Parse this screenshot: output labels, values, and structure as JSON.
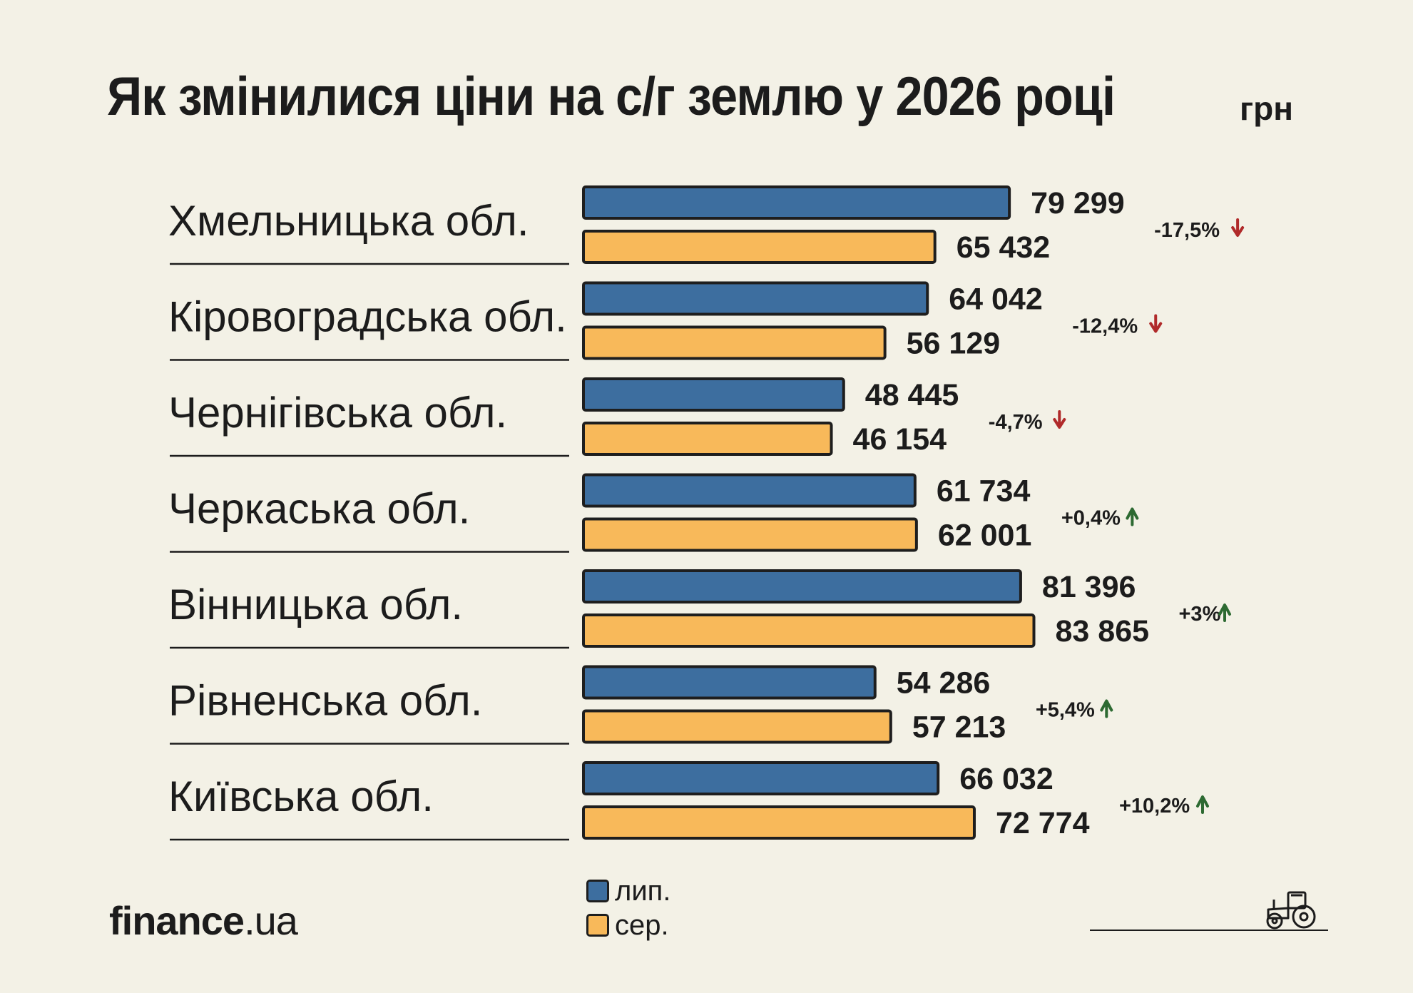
{
  "title": "Як змінилися ціни на с/г землю у 2026 році",
  "unit": "грн",
  "chart_data": {
    "type": "bar",
    "orientation": "horizontal",
    "categories": [
      "Хмельницька обл.",
      "Кіровоградська обл.",
      "Чернігівська обл.",
      "Черкаська обл.",
      "Вінницька обл.",
      "Рівненська обл.",
      "Київська обл."
    ],
    "series": [
      {
        "name": "лип.",
        "color": "#3d6e9f",
        "values": [
          79299,
          64042,
          48445,
          61734,
          81396,
          54286,
          66032
        ],
        "labels": [
          "79 299",
          "64 042",
          "48 445",
          "61 734",
          "81 396",
          "54 286",
          "66 032"
        ]
      },
      {
        "name": "сер.",
        "color": "#f8b95a",
        "values": [
          65432,
          56129,
          46154,
          62001,
          83865,
          57213,
          72774
        ],
        "labels": [
          "65 432",
          "56 129",
          "46 154",
          "62 001",
          "83 865",
          "57 213",
          "72 774"
        ]
      }
    ],
    "changes": [
      {
        "text": "-17,5%",
        "direction": "down"
      },
      {
        "text": "-12,4%",
        "direction": "down"
      },
      {
        "text": "-4,7%",
        "direction": "down"
      },
      {
        "text": "+0,4%",
        "direction": "up"
      },
      {
        "text": "+3%",
        "direction": "up"
      },
      {
        "text": "+5,4%",
        "direction": "up"
      },
      {
        "text": "+10,2%",
        "direction": "up"
      }
    ],
    "colors": {
      "down": "#b02a2a",
      "up": "#2d6a32"
    }
  },
  "legend": [
    {
      "label": "лип.",
      "color": "#3d6e9f"
    },
    {
      "label": "сер.",
      "color": "#f8b95a"
    }
  ],
  "logo": {
    "main": "finance",
    "suffix": ".ua"
  },
  "icons": {
    "tractor": "tractor-icon"
  }
}
